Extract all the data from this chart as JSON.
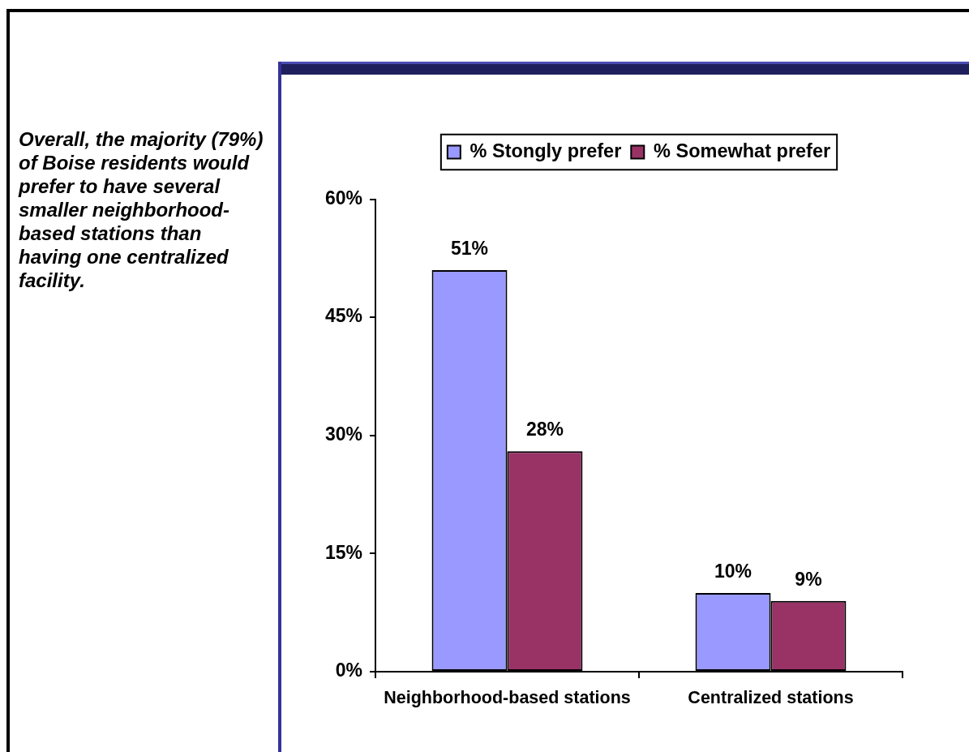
{
  "chart_data": {
    "type": "bar",
    "categories": [
      "Neighborhood-based stations",
      "Centralized stations"
    ],
    "series": [
      {
        "name": "% Stongly prefer",
        "color": "#9999ff",
        "values": [
          51,
          10
        ],
        "value_labels": [
          "51%",
          "10%"
        ]
      },
      {
        "name": "% Somewhat prefer",
        "color": "#993366",
        "values": [
          28,
          9
        ],
        "value_labels": [
          "28%",
          "9%"
        ]
      }
    ],
    "ylim": [
      0,
      60
    ],
    "yticks": [
      {
        "value": 0,
        "label": "0%"
      },
      {
        "value": 15,
        "label": "15%"
      },
      {
        "value": 30,
        "label": "30%"
      },
      {
        "value": 45,
        "label": "45%"
      },
      {
        "value": 60,
        "label": "60%"
      }
    ],
    "grid": false,
    "legend": "top",
    "annotations": [
      "Overall, the majority (79%) of Boise residents would prefer to have several smaller neighborhood-based stations than having one centralized facility."
    ]
  }
}
